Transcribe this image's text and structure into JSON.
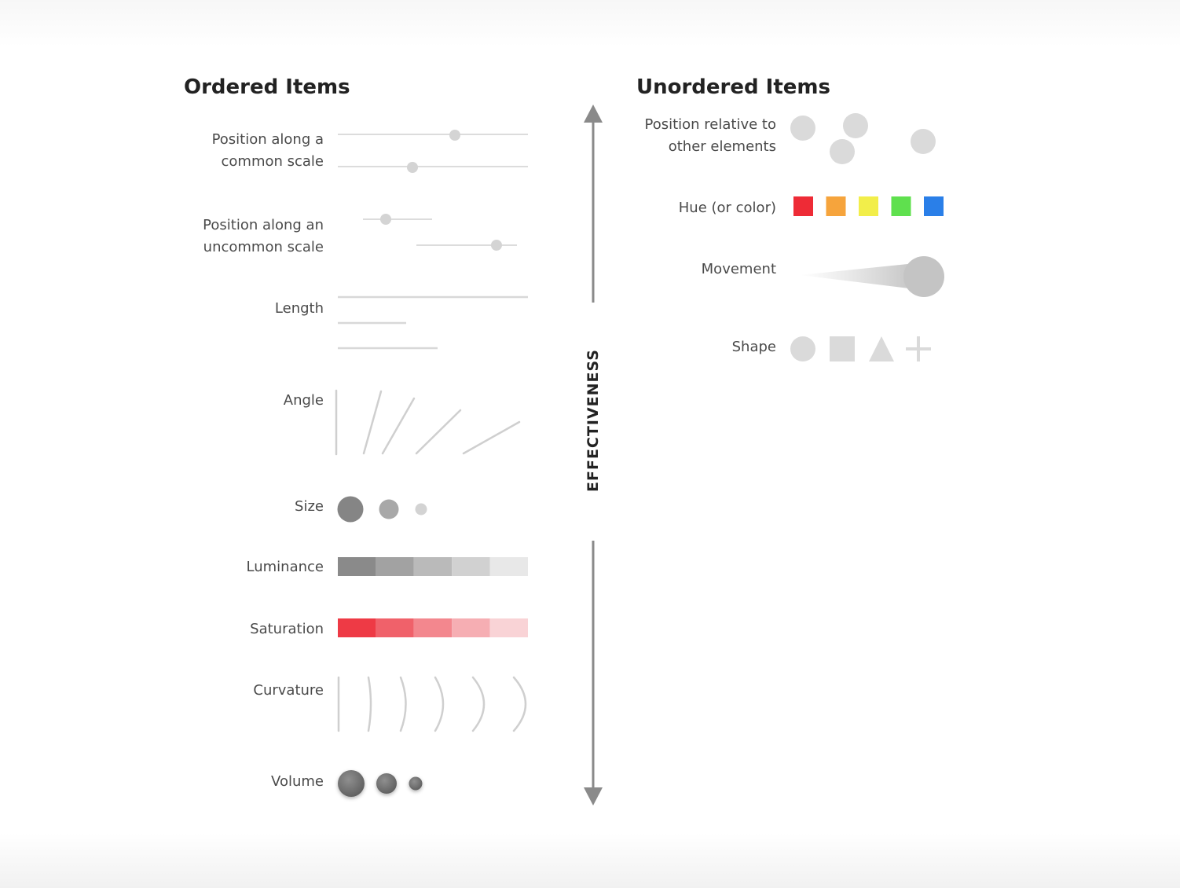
{
  "ordered": {
    "title": "Ordered Items",
    "labels": {
      "position_common_1": "Position along a",
      "position_common_2": "common scale",
      "position_uncommon_1": "Position along an",
      "position_uncommon_2": "uncommon scale",
      "length": "Length",
      "angle": "Angle",
      "size": "Size",
      "luminance": "Luminance",
      "saturation": "Saturation",
      "curvature": "Curvature",
      "volume": "Volume"
    }
  },
  "unordered": {
    "title": "Unordered Items",
    "labels": {
      "position_relative_1": "Position relative to",
      "position_relative_2": "other elements",
      "hue": "Hue (or color)",
      "movement": "Movement",
      "shape": "Shape"
    },
    "hue_colors": [
      "#ee2b36",
      "#f6a43c",
      "#f2ee4a",
      "#5fe04e",
      "#2a7fe8"
    ]
  },
  "axis": {
    "label": "EFFECTIVENESS"
  },
  "colors": {
    "luminance": [
      "#8a8a8a",
      "#a2a2a2",
      "#bababa",
      "#d1d1d1",
      "#e8e8e8"
    ],
    "saturation": [
      "#ee3a45",
      "#f0616a",
      "#f3878e",
      "#f6aeb3",
      "#f9d3d6"
    ],
    "mark_light": "#d4d4d4",
    "mark_dark": "#7d7d7d"
  }
}
